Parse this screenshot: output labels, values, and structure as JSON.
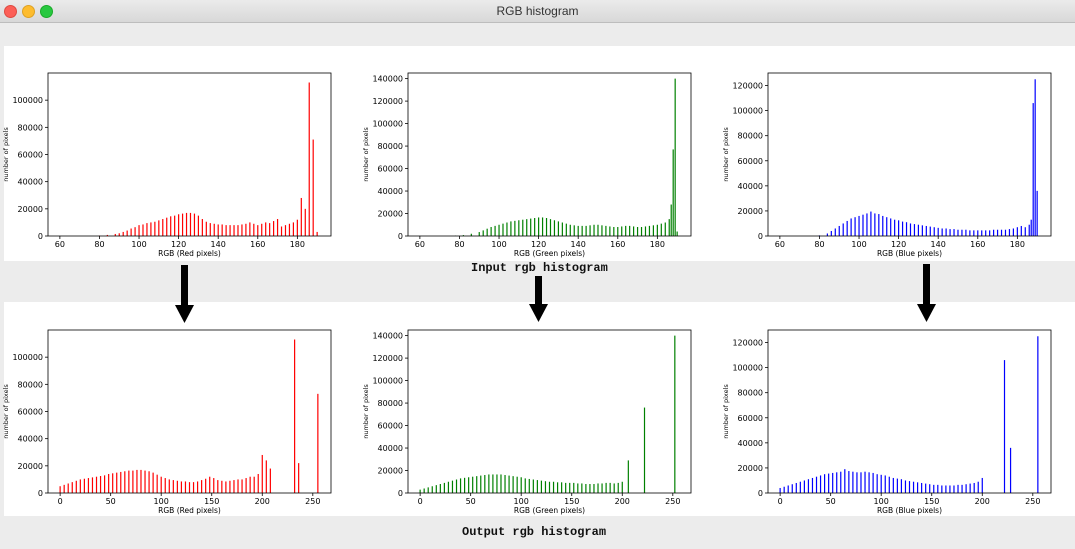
{
  "window": {
    "title": "RGB histogram"
  },
  "captions": {
    "input": "Input rgb histogram",
    "output": "Output rgb histogram"
  },
  "colors": {
    "red": "#ff0000",
    "green": "#008000",
    "blue": "#0000ff"
  },
  "chart_data": [
    {
      "id": "input-red",
      "type": "bar",
      "color": "#ff0000",
      "xlabel": "RGB (Red pixels)",
      "ylabel": "number of pixels",
      "xlim": [
        54,
        197
      ],
      "ylim": [
        0,
        120000
      ],
      "xticks": [
        60,
        80,
        100,
        120,
        140,
        160,
        180
      ],
      "yticks": [
        0,
        20000,
        40000,
        60000,
        80000,
        100000
      ],
      "ytick_labels": [
        "0",
        "20000",
        "40000",
        "60000",
        "80000",
        "100000"
      ],
      "x": [
        80,
        84,
        88,
        90,
        92,
        94,
        96,
        98,
        100,
        102,
        104,
        106,
        108,
        110,
        112,
        114,
        116,
        118,
        120,
        122,
        124,
        126,
        128,
        130,
        132,
        134,
        136,
        138,
        140,
        142,
        144,
        146,
        148,
        150,
        152,
        154,
        156,
        158,
        160,
        162,
        164,
        166,
        168,
        170,
        172,
        174,
        176,
        178,
        180,
        182,
        184,
        186,
        188,
        190
      ],
      "values": [
        300,
        800,
        1500,
        2000,
        3000,
        4000,
        5500,
        6500,
        8000,
        8500,
        9500,
        10000,
        10500,
        11500,
        12500,
        13500,
        14500,
        15000,
        16000,
        16500,
        17000,
        17000,
        16500,
        15000,
        12500,
        10500,
        9500,
        9000,
        8500,
        8500,
        8000,
        8000,
        8000,
        8000,
        8500,
        9000,
        10000,
        9000,
        8000,
        9000,
        10000,
        9500,
        11000,
        12500,
        7000,
        8000,
        9000,
        10000,
        12000,
        28000,
        20000,
        113000,
        71000,
        3000
      ]
    },
    {
      "id": "input-green",
      "type": "bar",
      "color": "#008000",
      "xlabel": "RGB (Green pixels)",
      "ylabel": "number of pixels",
      "xlim": [
        54,
        197
      ],
      "ylim": [
        0,
        145000
      ],
      "xticks": [
        60,
        80,
        100,
        120,
        140,
        160,
        180
      ],
      "yticks": [
        0,
        20000,
        40000,
        60000,
        80000,
        100000,
        120000,
        140000
      ],
      "ytick_labels": [
        "0",
        "20000",
        "40000",
        "60000",
        "80000",
        "100000",
        "120000",
        "140000"
      ],
      "x": [
        78,
        82,
        86,
        90,
        92,
        94,
        96,
        98,
        100,
        102,
        104,
        106,
        108,
        110,
        112,
        114,
        116,
        118,
        120,
        122,
        124,
        126,
        128,
        130,
        132,
        134,
        136,
        138,
        140,
        142,
        144,
        146,
        148,
        150,
        152,
        154,
        156,
        158,
        160,
        162,
        164,
        166,
        168,
        170,
        172,
        174,
        176,
        178,
        180,
        182,
        184,
        186,
        187,
        188,
        189,
        190
      ],
      "values": [
        300,
        800,
        2000,
        3500,
        5000,
        6500,
        8000,
        9000,
        10000,
        11000,
        12000,
        13000,
        13500,
        14000,
        14500,
        15000,
        15500,
        16000,
        16500,
        16500,
        16000,
        15000,
        14000,
        13000,
        12000,
        11000,
        10000,
        9500,
        9000,
        9000,
        9000,
        9500,
        10000,
        10000,
        9500,
        9000,
        8500,
        8000,
        8000,
        8500,
        9000,
        9000,
        8500,
        8000,
        8000,
        8500,
        9000,
        9500,
        10000,
        11000,
        12000,
        15000,
        28000,
        77000,
        140000,
        4000
      ]
    },
    {
      "id": "input-blue",
      "type": "bar",
      "color": "#0000ff",
      "xlabel": "RGB (Blue pixels)",
      "ylabel": "number of pixels",
      "xlim": [
        54,
        197
      ],
      "ylim": [
        0,
        130000
      ],
      "xticks": [
        60,
        80,
        100,
        120,
        140,
        160,
        180
      ],
      "yticks": [
        0,
        20000,
        40000,
        60000,
        80000,
        100000,
        120000
      ],
      "ytick_labels": [
        "0",
        "20000",
        "40000",
        "60000",
        "80000",
        "100000",
        "120000"
      ],
      "x": [
        80,
        84,
        86,
        88,
        90,
        92,
        94,
        96,
        98,
        100,
        102,
        104,
        106,
        108,
        110,
        112,
        114,
        116,
        118,
        120,
        122,
        124,
        126,
        128,
        130,
        132,
        134,
        136,
        138,
        140,
        142,
        144,
        146,
        148,
        150,
        152,
        154,
        156,
        158,
        160,
        162,
        164,
        166,
        168,
        170,
        172,
        174,
        176,
        178,
        180,
        182,
        184,
        186,
        187,
        188,
        189,
        190
      ],
      "values": [
        500,
        2000,
        4000,
        6000,
        8000,
        10000,
        12000,
        14000,
        15000,
        16000,
        17000,
        18000,
        19500,
        18000,
        17500,
        16000,
        15000,
        14000,
        13000,
        12500,
        11500,
        11000,
        10000,
        9500,
        9000,
        8500,
        8000,
        7500,
        7000,
        6500,
        6000,
        6000,
        5500,
        5500,
        5000,
        5000,
        5000,
        4500,
        4500,
        4500,
        4500,
        4500,
        4500,
        5000,
        5000,
        5000,
        5000,
        5500,
        6000,
        7000,
        8000,
        7000,
        9000,
        13000,
        106000,
        125000,
        36000
      ]
    },
    {
      "id": "output-red",
      "type": "bar",
      "color": "#ff0000",
      "xlabel": "RGB (Red pixels)",
      "ylabel": "number of pixels",
      "xlim": [
        -12,
        268
      ],
      "ylim": [
        0,
        120000
      ],
      "xticks": [
        0,
        50,
        100,
        150,
        200,
        250
      ],
      "yticks": [
        0,
        20000,
        40000,
        60000,
        80000,
        100000
      ],
      "ytick_labels": [
        "0",
        "20000",
        "40000",
        "60000",
        "80000",
        "100000"
      ],
      "x": [
        0,
        4,
        8,
        12,
        16,
        20,
        24,
        28,
        32,
        36,
        40,
        44,
        48,
        52,
        56,
        60,
        64,
        68,
        72,
        76,
        80,
        84,
        88,
        92,
        96,
        100,
        104,
        108,
        112,
        116,
        120,
        124,
        128,
        132,
        136,
        140,
        144,
        148,
        152,
        156,
        160,
        164,
        168,
        172,
        176,
        180,
        184,
        188,
        192,
        196,
        200,
        204,
        208,
        232,
        236,
        255
      ],
      "values": [
        5000,
        6000,
        7000,
        8000,
        9000,
        10000,
        10500,
        11000,
        11500,
        12000,
        12500,
        13000,
        14000,
        14500,
        15000,
        15500,
        16000,
        16500,
        16500,
        17000,
        17000,
        16500,
        16000,
        15000,
        13500,
        12000,
        11000,
        10000,
        9500,
        9000,
        8500,
        8500,
        8000,
        8000,
        8500,
        9500,
        10500,
        12000,
        11000,
        9500,
        9000,
        8500,
        9000,
        9500,
        10000,
        10000,
        11000,
        12000,
        12000,
        14000,
        28000,
        24000,
        18000,
        113000,
        22000,
        73000
      ]
    },
    {
      "id": "output-green",
      "type": "bar",
      "color": "#008000",
      "xlabel": "RGB (Green pixels)",
      "ylabel": "number of pixels",
      "xlim": [
        -12,
        268
      ],
      "ylim": [
        0,
        145000
      ],
      "xticks": [
        0,
        50,
        100,
        150,
        200,
        250
      ],
      "yticks": [
        0,
        20000,
        40000,
        60000,
        80000,
        100000,
        120000,
        140000
      ],
      "ytick_labels": [
        "0",
        "20000",
        "40000",
        "60000",
        "80000",
        "100000",
        "120000",
        "140000"
      ],
      "x": [
        0,
        4,
        8,
        12,
        16,
        20,
        24,
        28,
        32,
        36,
        40,
        44,
        48,
        52,
        56,
        60,
        64,
        68,
        72,
        76,
        80,
        84,
        88,
        92,
        96,
        100,
        104,
        108,
        112,
        116,
        120,
        124,
        128,
        132,
        136,
        140,
        144,
        148,
        152,
        156,
        160,
        164,
        168,
        172,
        176,
        180,
        184,
        188,
        192,
        196,
        200,
        206,
        222,
        252
      ],
      "values": [
        3000,
        4000,
        5000,
        6000,
        7000,
        8000,
        9000,
        10000,
        11000,
        12000,
        13000,
        13500,
        14000,
        14500,
        15000,
        15500,
        16000,
        16500,
        16500,
        16500,
        16500,
        16000,
        15500,
        15000,
        14500,
        14000,
        13000,
        12500,
        12000,
        11500,
        11000,
        10500,
        10000,
        10000,
        9500,
        9500,
        9000,
        9000,
        9000,
        8500,
        8500,
        8000,
        8000,
        8000,
        8500,
        8500,
        9000,
        9000,
        8500,
        9000,
        10000,
        29000,
        76000,
        140000
      ]
    },
    {
      "id": "output-blue",
      "type": "bar",
      "color": "#0000ff",
      "xlabel": "RGB (Blue pixels)",
      "ylabel": "number of pixels",
      "xlim": [
        -12,
        268
      ],
      "ylim": [
        0,
        130000
      ],
      "xticks": [
        0,
        50,
        100,
        150,
        200,
        250
      ],
      "yticks": [
        0,
        20000,
        40000,
        60000,
        80000,
        100000,
        120000
      ],
      "ytick_labels": [
        "0",
        "20000",
        "40000",
        "60000",
        "80000",
        "100000",
        "120000"
      ],
      "x": [
        0,
        4,
        8,
        12,
        16,
        20,
        24,
        28,
        32,
        36,
        40,
        44,
        48,
        52,
        56,
        60,
        64,
        68,
        72,
        76,
        80,
        84,
        88,
        92,
        96,
        100,
        104,
        108,
        112,
        116,
        120,
        124,
        128,
        132,
        136,
        140,
        144,
        148,
        152,
        156,
        160,
        164,
        168,
        172,
        176,
        180,
        184,
        188,
        192,
        196,
        200,
        222,
        228,
        255
      ],
      "values": [
        4000,
        5000,
        6000,
        7000,
        8000,
        9000,
        10000,
        11000,
        12000,
        13000,
        14000,
        15000,
        15500,
        16000,
        16500,
        17000,
        19000,
        17500,
        17000,
        16500,
        16500,
        17000,
        16500,
        16000,
        15000,
        14500,
        14000,
        13000,
        12000,
        11500,
        11000,
        10000,
        9500,
        9000,
        8500,
        8000,
        7500,
        7000,
        6500,
        6500,
        6000,
        6000,
        6000,
        6000,
        6500,
        6500,
        7000,
        7500,
        8000,
        9000,
        12000,
        106000,
        36000,
        125000
      ]
    }
  ]
}
